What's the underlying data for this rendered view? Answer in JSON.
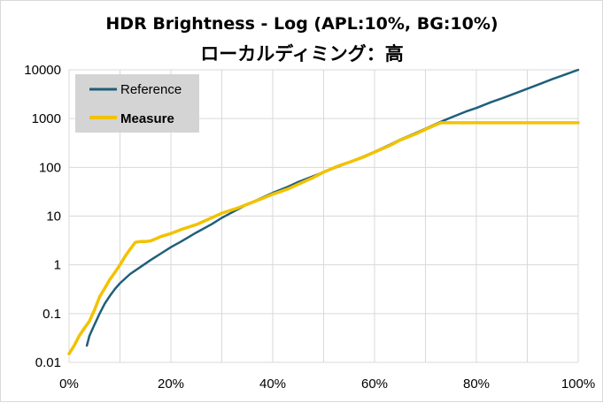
{
  "chart_data": {
    "type": "line",
    "title": "HDR Brightness - Log (APL:10%, BG:10%)",
    "subtitle": "ローカルディミング：高",
    "xlabel": "",
    "ylabel": "",
    "x_scale": "linear",
    "y_scale": "log",
    "xlim": [
      0,
      100
    ],
    "ylim": [
      0.01,
      10000
    ],
    "x_tick_labels": [
      "0%",
      "20%",
      "40%",
      "60%",
      "80%",
      "100%"
    ],
    "y_tick_labels": [
      "0.01",
      "0.1",
      "1",
      "10",
      "100",
      "1000",
      "10000"
    ],
    "grid": true,
    "legend_position": "top-left",
    "series": [
      {
        "name": "Reference",
        "color": "#1f5f7a",
        "x": [
          3.5,
          4,
          5,
          6,
          7,
          8,
          9,
          10,
          12,
          14,
          16,
          18,
          20,
          22,
          25,
          28,
          30,
          33,
          35,
          38,
          40,
          43,
          45,
          48,
          50,
          53,
          55,
          58,
          60,
          63,
          65,
          68,
          70,
          73,
          75,
          78,
          80,
          83,
          85,
          88,
          90,
          93,
          95,
          98,
          100
        ],
        "y": [
          0.022,
          0.035,
          0.06,
          0.1,
          0.16,
          0.23,
          0.32,
          0.42,
          0.65,
          0.9,
          1.25,
          1.7,
          2.3,
          3.0,
          4.6,
          6.8,
          9.2,
          13.5,
          17.5,
          24,
          30,
          40,
          50,
          66,
          80,
          105,
          127,
          170,
          210,
          290,
          370,
          500,
          620,
          860,
          1050,
          1400,
          1650,
          2200,
          2600,
          3400,
          4100,
          5400,
          6500,
          8400,
          10000
        ]
      },
      {
        "name": "Measure",
        "color": "#f2c200",
        "x": [
          0,
          1,
          2,
          3,
          4,
          5,
          6,
          7,
          8,
          9,
          10,
          11,
          12,
          13,
          14,
          15,
          16,
          17,
          18,
          19,
          20,
          22,
          25,
          28,
          30,
          33,
          35,
          38,
          40,
          43,
          45,
          48,
          50,
          53,
          55,
          58,
          60,
          63,
          65,
          68,
          70,
          72,
          73,
          75,
          80,
          85,
          90,
          95,
          100
        ],
        "y": [
          0.015,
          0.022,
          0.035,
          0.05,
          0.07,
          0.12,
          0.22,
          0.33,
          0.5,
          0.7,
          1.0,
          1.5,
          2.1,
          2.9,
          3.0,
          3.0,
          3.1,
          3.4,
          3.8,
          4.1,
          4.4,
          5.3,
          6.7,
          9.2,
          11.5,
          14.5,
          17.5,
          23,
          28,
          36,
          45,
          62,
          80,
          108,
          127,
          165,
          205,
          280,
          360,
          480,
          600,
          740,
          820,
          820,
          820,
          820,
          820,
          820,
          820
        ]
      }
    ]
  }
}
